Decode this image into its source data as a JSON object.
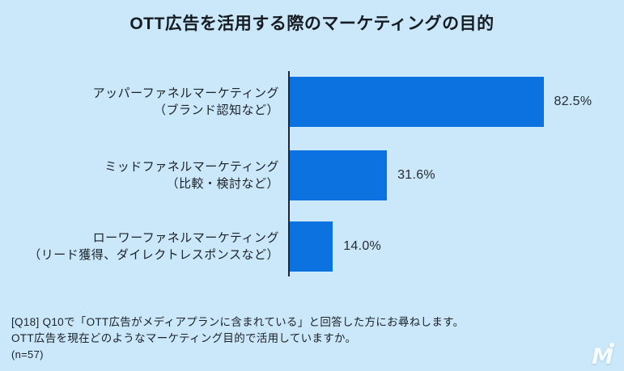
{
  "page": {
    "background_color": "#cae8f9",
    "bar_color": "#0b72df",
    "axis_color": "#1d2731",
    "text_color": "#1c2128"
  },
  "title": "OTT広告を活用する際のマーケティングの目的",
  "chart_data": {
    "type": "bar",
    "orientation": "horizontal",
    "title": "OTT広告を活用する際のマーケティングの目的",
    "categories": [
      "アッパーファネルマーケティング（ブランド認知など）",
      "ミッドファネルマーケティング（比較・検討など）",
      "ローワーファネルマーケティング（リード獲得、ダイレクトレスポンスなど）"
    ],
    "values": [
      82.5,
      31.6,
      14.0
    ],
    "value_labels": [
      "82.5%",
      "31.6%",
      "14.0%"
    ],
    "xlabel": "",
    "ylabel": "",
    "xlim": [
      0,
      100
    ],
    "grid": false,
    "legend": "none",
    "bar_color": "#0b72df",
    "n": 57
  },
  "rows": [
    {
      "label_line1": "アッパーファネルマーケティング",
      "label_line2": "（ブランド認知など）",
      "value_label": "82.5%"
    },
    {
      "label_line1": "ミッドファネルマーケティング",
      "label_line2": "（比較・検討など）",
      "value_label": "31.6%"
    },
    {
      "label_line1": "ローワーファネルマーケティング",
      "label_line2": "（リード獲得、ダイレクトレスポンスなど）",
      "value_label": "14.0%"
    }
  ],
  "footer": {
    "line1": "[Q18] Q10で「OTT広告がメディアプランに含まれている」と回答した方にお尋ねします。",
    "line2": "OTT広告を現在どのようなマーケティング目的で活用していますか。",
    "sample": "(n=57)"
  },
  "logo": {
    "letter": "M",
    "name": "media-innovation-logo"
  }
}
